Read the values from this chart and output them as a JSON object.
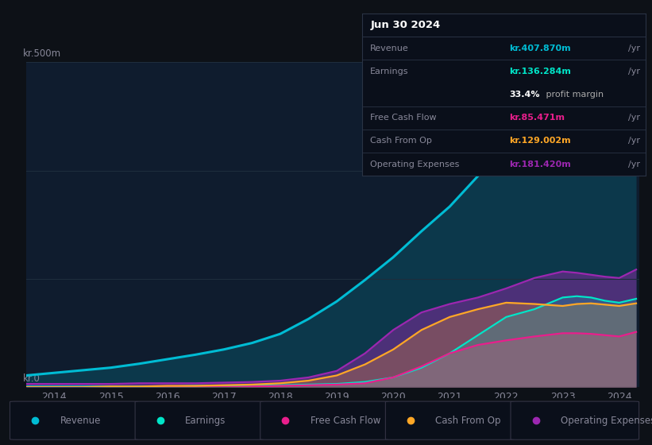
{
  "bg_color": "#0d1117",
  "plot_bg_color": "#0f1c2e",
  "grid_color": "#1e2d3d",
  "text_color": "#888899",
  "ylabel_text": "kr.500m",
  "ylabel_zero": "kr.0",
  "ylim": [
    0,
    500
  ],
  "years": [
    2013.5,
    2014.0,
    2014.5,
    2015.0,
    2015.5,
    2016.0,
    2016.5,
    2017.0,
    2017.5,
    2018.0,
    2018.5,
    2019.0,
    2019.5,
    2020.0,
    2020.5,
    2021.0,
    2021.5,
    2022.0,
    2022.5,
    2023.0,
    2023.25,
    2023.5,
    2023.75,
    2024.0,
    2024.3
  ],
  "revenue": [
    18,
    22,
    26,
    30,
    36,
    43,
    50,
    58,
    68,
    82,
    105,
    132,
    165,
    200,
    240,
    278,
    325,
    375,
    425,
    488,
    475,
    450,
    400,
    360,
    408
  ],
  "earnings": [
    1,
    1,
    1,
    1,
    1,
    1,
    2,
    2,
    3,
    3,
    4,
    5,
    8,
    15,
    30,
    52,
    80,
    108,
    120,
    138,
    140,
    138,
    133,
    130,
    136
  ],
  "fcf": [
    0,
    0,
    0,
    0,
    0,
    0,
    0,
    0,
    1,
    2,
    3,
    4,
    6,
    15,
    32,
    52,
    65,
    72,
    78,
    83,
    83,
    82,
    80,
    78,
    85
  ],
  "cashfromop": [
    0,
    0,
    0,
    1,
    1,
    2,
    2,
    3,
    4,
    6,
    10,
    18,
    35,
    58,
    88,
    108,
    120,
    130,
    128,
    125,
    128,
    129,
    127,
    125,
    129
  ],
  "opex": [
    5,
    5,
    5,
    5,
    6,
    6,
    6,
    7,
    8,
    10,
    15,
    25,
    52,
    88,
    115,
    128,
    138,
    152,
    168,
    178,
    176,
    173,
    170,
    168,
    181
  ],
  "revenue_color": "#00bcd4",
  "earnings_color": "#00e5c8",
  "fcf_color": "#e91e8c",
  "cashfromop_color": "#ffa726",
  "opex_color": "#9c27b0",
  "xticks": [
    2014,
    2015,
    2016,
    2017,
    2018,
    2019,
    2020,
    2021,
    2022,
    2023,
    2024
  ],
  "info_box": {
    "date": "Jun 30 2024",
    "rows": [
      {
        "label": "Revenue",
        "value": "kr.407.870m",
        "unit": "/yr",
        "color": "#00bcd4",
        "extra": null
      },
      {
        "label": "Earnings",
        "value": "kr.136.284m",
        "unit": "/yr",
        "color": "#00e5c8",
        "extra": "33.4% profit margin"
      },
      {
        "label": "Free Cash Flow",
        "value": "kr.85.471m",
        "unit": "/yr",
        "color": "#e91e8c",
        "extra": null
      },
      {
        "label": "Cash From Op",
        "value": "kr.129.002m",
        "unit": "/yr",
        "color": "#ffa726",
        "extra": null
      },
      {
        "label": "Operating Expenses",
        "value": "kr.181.420m",
        "unit": "/yr",
        "color": "#9c27b0",
        "extra": null
      }
    ]
  },
  "legend": [
    {
      "label": "Revenue",
      "color": "#00bcd4"
    },
    {
      "label": "Earnings",
      "color": "#00e5c8"
    },
    {
      "label": "Free Cash Flow",
      "color": "#e91e8c"
    },
    {
      "label": "Cash From Op",
      "color": "#ffa726"
    },
    {
      "label": "Operating Expenses",
      "color": "#9c27b0"
    }
  ]
}
